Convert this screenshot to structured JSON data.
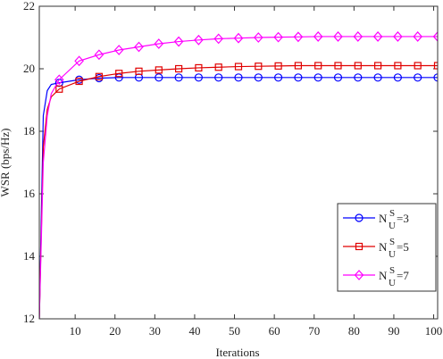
{
  "chart_data": {
    "type": "line",
    "xlabel": "Iterations",
    "ylabel": "WSR (bps/Hz)",
    "x": [
      1,
      2,
      3,
      4,
      6,
      11,
      16,
      21,
      26,
      31,
      36,
      41,
      46,
      51,
      56,
      61,
      66,
      71,
      76,
      81,
      86,
      91,
      96,
      101
    ],
    "legend_symbol": {
      "base": "N",
      "sup": "S",
      "sub": "U"
    },
    "series": [
      {
        "name": "=3",
        "color": "#0000ff",
        "marker": "circle",
        "values": [
          12,
          18.5,
          19.3,
          19.5,
          19.55,
          19.65,
          19.7,
          19.72,
          19.72,
          19.72,
          19.72,
          19.72,
          19.72,
          19.72,
          19.72,
          19.72,
          19.72,
          19.72,
          19.72,
          19.72,
          19.72,
          19.72,
          19.72,
          19.72
        ]
      },
      {
        "name": "=5",
        "color": "#e00000",
        "marker": "square",
        "values": [
          12,
          17.5,
          18.7,
          19.1,
          19.35,
          19.6,
          19.75,
          19.85,
          19.92,
          19.96,
          20.0,
          20.03,
          20.05,
          20.07,
          20.08,
          20.09,
          20.1,
          20.1,
          20.1,
          20.1,
          20.1,
          20.1,
          20.1,
          20.1
        ]
      },
      {
        "name": "=7",
        "color": "#ff00ff",
        "marker": "diamond",
        "values": [
          12,
          17,
          18.5,
          19.2,
          19.65,
          20.25,
          20.45,
          20.6,
          20.7,
          20.8,
          20.87,
          20.92,
          20.96,
          20.98,
          21.0,
          21.01,
          21.02,
          21.03,
          21.03,
          21.03,
          21.03,
          21.03,
          21.03,
          21.03
        ]
      }
    ],
    "xlim": [
      1,
      101
    ],
    "ylim": [
      12,
      22
    ],
    "xticks": [
      10,
      20,
      30,
      40,
      50,
      60,
      70,
      80,
      90,
      100
    ],
    "yticks": [
      12,
      14,
      16,
      18,
      20,
      22
    ],
    "grid": false,
    "legend_position": "lower right"
  }
}
